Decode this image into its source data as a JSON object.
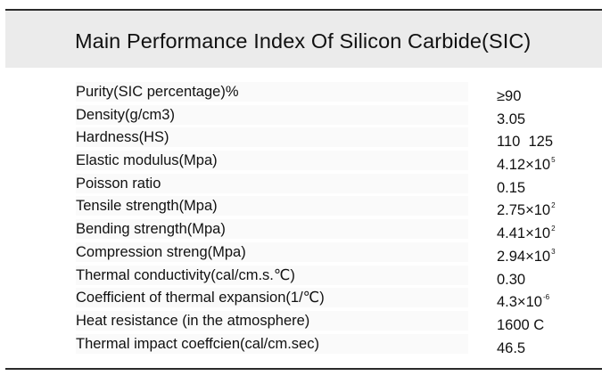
{
  "title": "Main Performance Index Of Silicon Carbide(SIC)",
  "rows": [
    {
      "label": "Purity(SIC percentage)%",
      "value": "≥90",
      "exp": ""
    },
    {
      "label": "Density(g/cm3)",
      "value": "3.05",
      "exp": ""
    },
    {
      "label": "Hardness(HS)",
      "value": "110  125",
      "exp": ""
    },
    {
      "label": "Elastic modulus(Mpa)",
      "value": "4.12×10",
      "exp": "5"
    },
    {
      "label": "Poisson ratio",
      "value": "0.15",
      "exp": ""
    },
    {
      "label": "Tensile strength(Mpa)",
      "value": "2.75×10",
      "exp": "2"
    },
    {
      "label": "Bending strength(Mpa)",
      "value": "4.41×10",
      "exp": "2"
    },
    {
      "label": "Compression streng(Mpa)",
      "value": "2.94×10",
      "exp": "3"
    },
    {
      "label": "Thermal conductivity(cal/cm.s.℃)",
      "value": "0.30",
      "exp": ""
    },
    {
      "label": "Coefficient of thermal expansion(1/℃)",
      "value": "4.3×10",
      "exp": "-6"
    },
    {
      "label": "Heat resistance (in the atmosphere)",
      "value": "1600 C",
      "exp": ""
    },
    {
      "label": "Thermal impact coeffcien(cal/cm.sec)",
      "value": "46.5",
      "exp": ""
    }
  ]
}
